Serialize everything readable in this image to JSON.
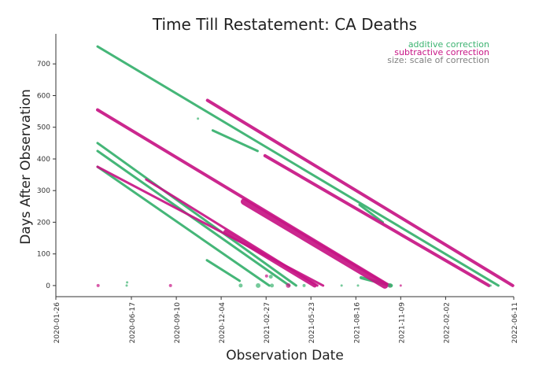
{
  "chart_data": {
    "type": "scatter",
    "title": "Time Till Restatement: CA Deaths",
    "xlabel": "Observation Date",
    "ylabel": "Days After Observation",
    "x_ticks": [
      "2020-01-26",
      "2020-06-17",
      "2020-09-10",
      "2020-12-04",
      "2021-02-27",
      "2021-05-23",
      "2021-08-16",
      "2021-11-09",
      "2022-02-02",
      "2022-06-11"
    ],
    "x_range": [
      "2020-01-26",
      "2022-06-11"
    ],
    "y_ticks": [
      0,
      100,
      200,
      300,
      400,
      500,
      600,
      700
    ],
    "ylim": [
      -35,
      795
    ],
    "legend": {
      "placement": "top-right",
      "entries": [
        {
          "label": "additive correction",
          "color": "#3cb371"
        },
        {
          "label": "subtractive correction",
          "color": "#c71585"
        },
        {
          "label": "size: scale of correction",
          "color": "#808080"
        }
      ]
    },
    "colors": {
      "additive": "#3cb371",
      "subtractive": "#c71585"
    },
    "series": [
      {
        "kind": "additive",
        "x": [
          "2020-04-14",
          "2022-05-13"
        ],
        "y": [
          755,
          0
        ],
        "size": 3
      },
      {
        "kind": "additive",
        "x": [
          "2020-04-14",
          "2021-04-25"
        ],
        "y": [
          450,
          0
        ],
        "size": 3
      },
      {
        "kind": "additive",
        "x": [
          "2020-04-14",
          "2021-04-12"
        ],
        "y": [
          425,
          0
        ],
        "size": 3
      },
      {
        "kind": "additive",
        "x": [
          "2020-04-14",
          "2021-03-05"
        ],
        "y": [
          375,
          0
        ],
        "size": 3
      },
      {
        "kind": "additive",
        "x": [
          "2020-11-18",
          "2021-02-11"
        ],
        "y": [
          490,
          425
        ],
        "size": 3
      },
      {
        "kind": "additive",
        "x": [
          "2020-11-07",
          "2021-01-08"
        ],
        "y": [
          80,
          15
        ],
        "size": 3
      },
      {
        "kind": "additive",
        "x": [
          "2021-08-26",
          "2021-10-22"
        ],
        "y": [
          25,
          0
        ],
        "size": 4
      },
      {
        "kind": "additive",
        "x": [
          "2021-08-23",
          "2021-10-06"
        ],
        "y": [
          255,
          200
        ],
        "size": 3
      },
      {
        "kind": "subtractive",
        "x": [
          "2020-04-14",
          "2021-10-18"
        ],
        "y": [
          555,
          0
        ],
        "size": 4
      },
      {
        "kind": "subtractive",
        "x": [
          "2020-11-08",
          "2022-06-09"
        ],
        "y": [
          585,
          0
        ],
        "size": 4
      },
      {
        "kind": "subtractive",
        "x": [
          "2020-04-14",
          "2021-06-15"
        ],
        "y": [
          375,
          0
        ],
        "size": 3
      },
      {
        "kind": "subtractive",
        "x": [
          "2020-07-15",
          "2021-06-04"
        ],
        "y": [
          335,
          0
        ],
        "size": 3
      },
      {
        "kind": "subtractive",
        "x": [
          "2021-02-25",
          "2022-04-25"
        ],
        "y": [
          410,
          0
        ],
        "size": 4
      },
      {
        "kind": "subtractive",
        "x": [
          "2021-01-16",
          "2021-10-10"
        ],
        "y": [
          265,
          0
        ],
        "size": 8
      },
      {
        "kind": "subtractive",
        "x": [
          "2020-12-12",
          "2021-05-30"
        ],
        "y": [
          170,
          0
        ],
        "size": 5
      }
    ],
    "zero_points": [
      {
        "kind": "subtractive",
        "x": "2020-04-15",
        "y": 0,
        "size": 4
      },
      {
        "kind": "additive",
        "x": "2020-06-08",
        "y": 0,
        "size": 3
      },
      {
        "kind": "subtractive",
        "x": "2020-08-30",
        "y": 0,
        "size": 4
      },
      {
        "kind": "additive",
        "x": "2021-01-10",
        "y": 0,
        "size": 5
      },
      {
        "kind": "additive",
        "x": "2021-02-12",
        "y": 0,
        "size": 6
      },
      {
        "kind": "additive",
        "x": "2021-03-10",
        "y": 0,
        "size": 5
      },
      {
        "kind": "subtractive",
        "x": "2021-04-10",
        "y": 0,
        "size": 6
      },
      {
        "kind": "additive",
        "x": "2021-05-10",
        "y": 0,
        "size": 4
      },
      {
        "kind": "additive",
        "x": "2021-07-20",
        "y": 0,
        "size": 3
      },
      {
        "kind": "additive",
        "x": "2021-08-20",
        "y": 0,
        "size": 3
      },
      {
        "kind": "additive",
        "x": "2021-10-20",
        "y": 0,
        "size": 6
      },
      {
        "kind": "subtractive",
        "x": "2021-11-09",
        "y": 0,
        "size": 3
      },
      {
        "kind": "additive",
        "x": "2022-04-28",
        "y": 0,
        "size": 3
      }
    ],
    "scattered_points": [
      {
        "kind": "additive",
        "x": "2020-06-09",
        "y": 10,
        "size": 3
      },
      {
        "kind": "additive",
        "x": "2020-10-21",
        "y": 527,
        "size": 3
      },
      {
        "kind": "additive",
        "x": "2021-03-08",
        "y": 28,
        "size": 5
      },
      {
        "kind": "subtractive",
        "x": "2021-02-28",
        "y": 30,
        "size": 4
      }
    ]
  }
}
